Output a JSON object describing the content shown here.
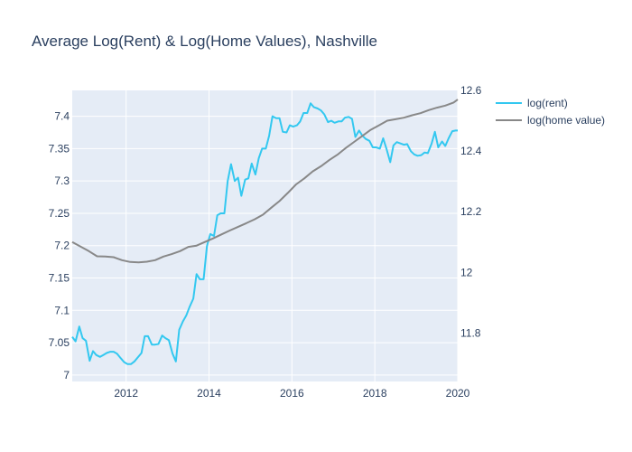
{
  "chart_data": {
    "type": "line",
    "title": "Average Log(Rent) & Log(Home Values), Nashville",
    "xlabel": "",
    "x_range": [
      2010.7,
      2020.0
    ],
    "x_ticks": [
      2012,
      2014,
      2016,
      2018,
      2020
    ],
    "y_left": {
      "label": "",
      "range": [
        6.99,
        7.44
      ],
      "ticks": [
        7,
        7.05,
        7.1,
        7.15,
        7.2,
        7.25,
        7.3,
        7.35,
        7.4
      ]
    },
    "y_right": {
      "label": "",
      "range": [
        11.64,
        12.6
      ],
      "ticks": [
        11.8,
        12,
        12.2,
        12.4,
        12.6
      ]
    },
    "grid": true,
    "legend_position": "top-right",
    "colors": {
      "plot_bg": "#e5ecf6",
      "grid": "#ffffff",
      "text": "#2a3f5f"
    },
    "series": [
      {
        "name": "log(rent)",
        "axis": "left",
        "color": "#33c8f0",
        "x": [
          2010.7,
          2010.78,
          2010.87,
          2010.95,
          2011.03,
          2011.12,
          2011.2,
          2011.28,
          2011.37,
          2011.45,
          2011.53,
          2011.62,
          2011.7,
          2011.78,
          2011.87,
          2011.95,
          2012.03,
          2012.12,
          2012.2,
          2012.28,
          2012.37,
          2012.45,
          2012.53,
          2012.62,
          2012.7,
          2012.78,
          2012.87,
          2012.95,
          2013.03,
          2013.12,
          2013.2,
          2013.28,
          2013.37,
          2013.45,
          2013.53,
          2013.62,
          2013.7,
          2013.78,
          2013.87,
          2013.95,
          2014.03,
          2014.12,
          2014.2,
          2014.28,
          2014.37,
          2014.45,
          2014.53,
          2014.62,
          2014.7,
          2014.78,
          2014.87,
          2014.95,
          2015.03,
          2015.12,
          2015.2,
          2015.28,
          2015.37,
          2015.45,
          2015.53,
          2015.62,
          2015.7,
          2015.78,
          2015.87,
          2015.95,
          2016.03,
          2016.12,
          2016.2,
          2016.28,
          2016.37,
          2016.45,
          2016.53,
          2016.62,
          2016.7,
          2016.78,
          2016.87,
          2016.95,
          2017.03,
          2017.12,
          2017.2,
          2017.28,
          2017.37,
          2017.45,
          2017.53,
          2017.62,
          2017.7,
          2017.78,
          2017.87,
          2017.95,
          2018.03,
          2018.12,
          2018.2,
          2018.28,
          2018.37,
          2018.45,
          2018.53,
          2018.62,
          2018.7,
          2018.78,
          2018.87,
          2018.95,
          2019.03,
          2019.12,
          2019.2,
          2019.28,
          2019.37,
          2019.45,
          2019.53,
          2019.62,
          2019.7,
          2019.78,
          2019.87,
          2019.95,
          2020.0
        ],
        "y": [
          7.059,
          7.052,
          7.075,
          7.057,
          7.053,
          7.022,
          7.037,
          7.031,
          7.028,
          7.031,
          7.034,
          7.036,
          7.036,
          7.033,
          7.026,
          7.02,
          7.017,
          7.017,
          7.021,
          7.027,
          7.034,
          7.06,
          7.06,
          7.047,
          7.047,
          7.048,
          7.061,
          7.057,
          7.054,
          7.033,
          7.021,
          7.07,
          7.083,
          7.092,
          7.105,
          7.118,
          7.156,
          7.148,
          7.148,
          7.199,
          7.218,
          7.215,
          7.247,
          7.25,
          7.25,
          7.3,
          7.326,
          7.3,
          7.305,
          7.277,
          7.302,
          7.304,
          7.327,
          7.31,
          7.335,
          7.35,
          7.35,
          7.37,
          7.4,
          7.397,
          7.397,
          7.376,
          7.375,
          7.386,
          7.384,
          7.386,
          7.392,
          7.405,
          7.405,
          7.42,
          7.414,
          7.412,
          7.409,
          7.403,
          7.391,
          7.393,
          7.39,
          7.392,
          7.392,
          7.398,
          7.399,
          7.396,
          7.368,
          7.378,
          7.37,
          7.365,
          7.362,
          7.352,
          7.352,
          7.35,
          7.366,
          7.35,
          7.329,
          7.355,
          7.36,
          7.358,
          7.356,
          7.357,
          7.346,
          7.341,
          7.339,
          7.34,
          7.344,
          7.343,
          7.358,
          7.376,
          7.352,
          7.361,
          7.354,
          7.366,
          7.377,
          7.378,
          7.378
        ]
      },
      {
        "name": "log(home value)",
        "axis": "right",
        "color": "#888888",
        "x": [
          2010.7,
          2010.9,
          2011.1,
          2011.3,
          2011.5,
          2011.7,
          2011.9,
          2012.1,
          2012.3,
          2012.5,
          2012.7,
          2012.9,
          2013.1,
          2013.3,
          2013.5,
          2013.7,
          2013.9,
          2014.1,
          2014.3,
          2014.5,
          2014.7,
          2014.9,
          2015.1,
          2015.3,
          2015.5,
          2015.7,
          2015.9,
          2016.1,
          2016.3,
          2016.5,
          2016.7,
          2016.9,
          2017.1,
          2017.3,
          2017.5,
          2017.7,
          2017.9,
          2018.1,
          2018.3,
          2018.5,
          2018.7,
          2018.9,
          2019.1,
          2019.3,
          2019.5,
          2019.7,
          2019.9,
          2020.0
        ],
        "y": [
          12.1,
          12.085,
          12.07,
          12.053,
          12.052,
          12.05,
          12.04,
          12.034,
          12.033,
          12.035,
          12.04,
          12.052,
          12.06,
          12.07,
          12.084,
          12.088,
          12.1,
          12.112,
          12.125,
          12.138,
          12.15,
          12.162,
          12.175,
          12.19,
          12.213,
          12.235,
          12.262,
          12.29,
          12.31,
          12.333,
          12.35,
          12.37,
          12.388,
          12.41,
          12.43,
          12.45,
          12.47,
          12.485,
          12.5,
          12.505,
          12.51,
          12.518,
          12.525,
          12.535,
          12.543,
          12.55,
          12.56,
          12.57
        ]
      }
    ]
  }
}
